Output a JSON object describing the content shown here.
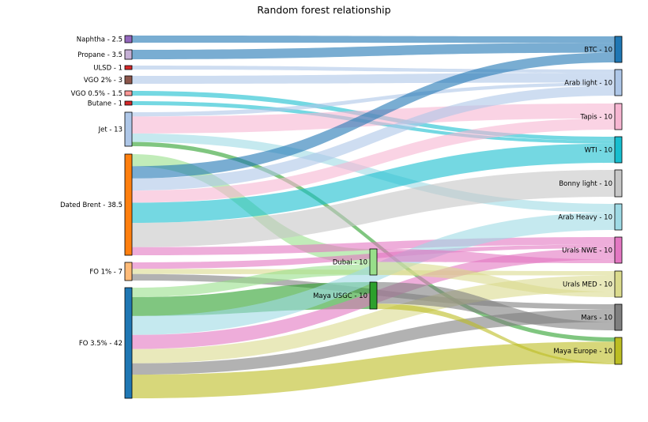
{
  "title": "Random forest relationship",
  "nodes": [
    {
      "id": "naphtha",
      "label": "Naphtha - 2.5",
      "color": "#9467bd"
    },
    {
      "id": "propane",
      "label": "Propane - 3.5",
      "color": "#c5b0d5"
    },
    {
      "id": "ulsd",
      "label": "ULSD - 1",
      "color": "#d62728"
    },
    {
      "id": "vgo2",
      "label": "VGO 2% - 3",
      "color": "#8c564b"
    },
    {
      "id": "vgo05",
      "label": "VGO 0.5% - 1.5",
      "color": "#ff9896"
    },
    {
      "id": "butane",
      "label": "Butane - 1",
      "color": "#d62728"
    },
    {
      "id": "jet",
      "label": "Jet - 13",
      "color": "#aec7e8"
    },
    {
      "id": "brent",
      "label": "Dated Brent - 38.5",
      "color": "#ff7f0e"
    },
    {
      "id": "fo1",
      "label": "FO 1% - 7",
      "color": "#ffbb78"
    },
    {
      "id": "fo35",
      "label": "FO 3.5% - 42",
      "color": "#1f77b4"
    },
    {
      "id": "dubai",
      "label": "Dubai - 10",
      "color": "#98df8a"
    },
    {
      "id": "mayausgc",
      "label": "Maya USGC - 10",
      "color": "#2ca02c"
    },
    {
      "id": "btc",
      "label": "BTC - 10",
      "color": "#1f77b4"
    },
    {
      "id": "arablight",
      "label": "Arab light - 10",
      "color": "#aec7e8"
    },
    {
      "id": "tapis",
      "label": "Tapis - 10",
      "color": "#f7b6d2"
    },
    {
      "id": "wti",
      "label": "WTI - 10",
      "color": "#17becf"
    },
    {
      "id": "bonny",
      "label": "Bonny light - 10",
      "color": "#c7c7c7"
    },
    {
      "id": "arabheavy",
      "label": "Arab Heavy - 10",
      "color": "#9edae5"
    },
    {
      "id": "uralsnwe",
      "label": "Urals NWE - 10",
      "color": "#e377c2"
    },
    {
      "id": "uralsmed",
      "label": "Urals MED - 10",
      "color": "#dbdb8d"
    },
    {
      "id": "mars",
      "label": "Mars - 10",
      "color": "#7f7f7f"
    },
    {
      "id": "mayaeur",
      "label": "Maya Europe - 10",
      "color": "#bcbd22"
    }
  ],
  "flows": [
    {
      "source": "naphtha",
      "target": "btc",
      "value": 1.0,
      "color": "#1f77b4"
    },
    {
      "source": "propane",
      "target": "btc",
      "value": 1.5,
      "color": "#1f77b4"
    },
    {
      "source": "ulsd",
      "target": "arablight",
      "value": 0.5,
      "color": "#aec7e8"
    },
    {
      "source": "vgo2",
      "target": "arablight",
      "value": 1.5,
      "color": "#aec7e8"
    },
    {
      "source": "vgo05",
      "target": "wti",
      "value": 0.5,
      "color": "#17becf"
    },
    {
      "source": "butane",
      "target": "wti",
      "value": 0.4,
      "color": "#17becf"
    },
    {
      "source": "jet",
      "target": "arablight",
      "value": 0.5,
      "color": "#aec7e8"
    },
    {
      "source": "jet",
      "target": "tapis",
      "value": 2.0,
      "color": "#f7b6d2"
    },
    {
      "source": "jet",
      "target": "arabheavy",
      "value": 1.0,
      "color": "#9edae5"
    },
    {
      "source": "jet",
      "target": "mayaeur",
      "value": 0.5,
      "color": "#2ca02c"
    },
    {
      "source": "brent",
      "target": "btc",
      "value": 1.5,
      "color": "#1f77b4"
    },
    {
      "source": "brent",
      "target": "arablight",
      "value": 1.5,
      "color": "#aec7e8"
    },
    {
      "source": "brent",
      "target": "tapis",
      "value": 1.5,
      "color": "#f7b6d2"
    },
    {
      "source": "brent",
      "target": "wti",
      "value": 2.5,
      "color": "#17becf"
    },
    {
      "source": "brent",
      "target": "bonny",
      "value": 3.0,
      "color": "#c7c7c7"
    },
    {
      "source": "brent",
      "target": "uralsnwe",
      "value": 1.0,
      "color": "#e377c2"
    },
    {
      "source": "brent",
      "target": "dubai",
      "value": 1.5,
      "color": "#98df8a"
    },
    {
      "source": "fo1",
      "target": "uralsnwe",
      "value": 0.5,
      "color": "#e377c2"
    },
    {
      "source": "fo1",
      "target": "uralsmed",
      "value": 0.4,
      "color": "#dbdb8d"
    },
    {
      "source": "fo1",
      "target": "mars",
      "value": 0.5,
      "color": "#7f7f7f"
    },
    {
      "source": "fo35",
      "target": "arabheavy",
      "value": 2.0,
      "color": "#9edae5"
    },
    {
      "source": "fo35",
      "target": "uralsnwe",
      "value": 1.5,
      "color": "#e377c2"
    },
    {
      "source": "fo35",
      "target": "dubai",
      "value": 1.0,
      "color": "#98df8a"
    },
    {
      "source": "fo35",
      "target": "uralsmed",
      "value": 1.5,
      "color": "#dbdb8d"
    },
    {
      "source": "fo35",
      "target": "mayausgc",
      "value": 2.0,
      "color": "#2ca02c"
    },
    {
      "source": "fo35",
      "target": "mars",
      "value": 1.2,
      "color": "#7f7f7f"
    },
    {
      "source": "fo35",
      "target": "mayaeur",
      "value": 2.5,
      "color": "#bcbd22"
    },
    {
      "source": "dubai",
      "target": "uralsnwe",
      "value": 0.5,
      "color": "#e377c2"
    },
    {
      "source": "dubai",
      "target": "uralsmed",
      "value": 0.5,
      "color": "#dbdb8d"
    },
    {
      "source": "mayausgc",
      "target": "mars",
      "value": 0.8,
      "color": "#7f7f7f"
    },
    {
      "source": "mayausgc",
      "target": "mayaeur",
      "value": 0.2,
      "color": "#bcbd22"
    }
  ]
}
